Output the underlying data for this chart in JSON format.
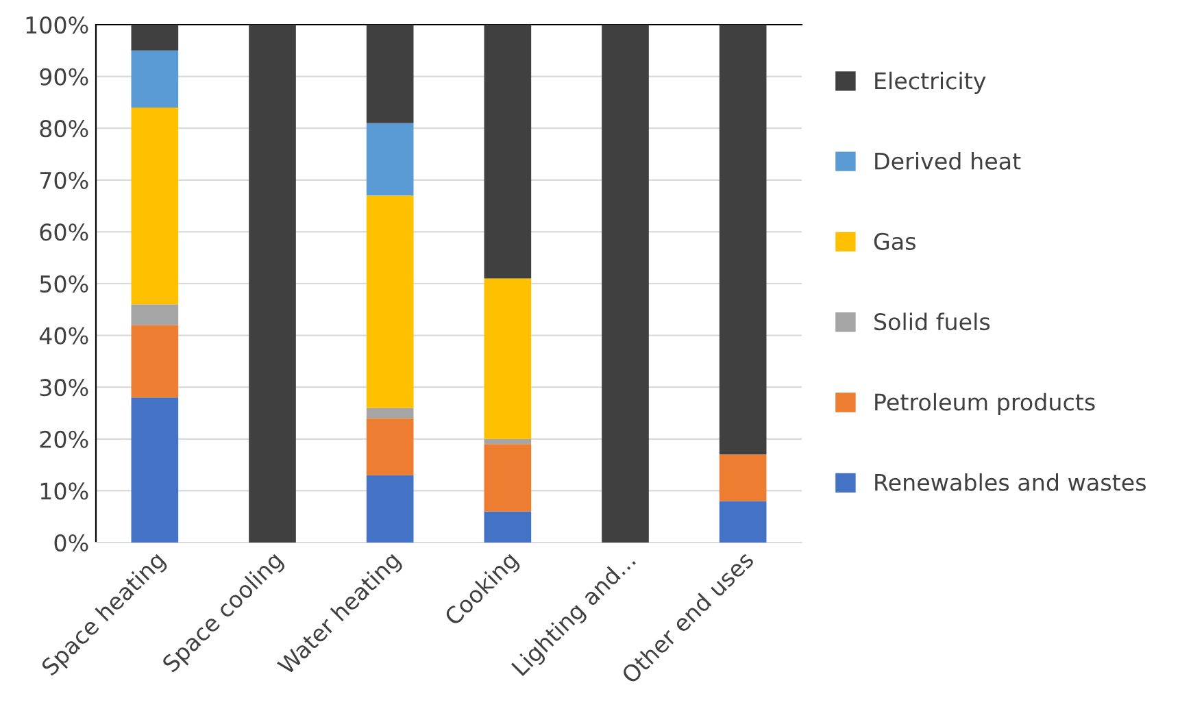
{
  "chart_data": {
    "type": "bar",
    "stacked": true,
    "categories": [
      "Space heating",
      "Space cooling",
      "Water heating",
      "Cooking",
      "Lighting and...",
      "Other end uses"
    ],
    "series": [
      {
        "name": "Renewables and wastes",
        "color": "#4472c4",
        "values": [
          28,
          0,
          13,
          6,
          0,
          8
        ]
      },
      {
        "name": "Petroleum products",
        "color": "#ed7d31",
        "values": [
          14,
          0,
          11,
          13,
          0,
          9
        ]
      },
      {
        "name": "Solid fuels",
        "color": "#a5a5a5",
        "values": [
          4,
          0,
          2,
          1,
          0,
          0
        ]
      },
      {
        "name": "Gas",
        "color": "#ffc000",
        "values": [
          38,
          0,
          41,
          31,
          0,
          0
        ]
      },
      {
        "name": "Derived heat",
        "color": "#5b9bd5",
        "values": [
          11,
          0,
          14,
          0,
          0,
          0
        ]
      },
      {
        "name": "Electricity",
        "color": "#404040",
        "values": [
          5,
          100,
          19,
          49,
          100,
          83
        ]
      }
    ],
    "ylim": [
      0,
      100
    ],
    "yticks": [
      {
        "value": 0,
        "label": "0%"
      },
      {
        "value": 10,
        "label": "10%"
      },
      {
        "value": 20,
        "label": "20%"
      },
      {
        "value": 30,
        "label": "30%"
      },
      {
        "value": 40,
        "label": "40%"
      },
      {
        "value": 50,
        "label": "50%"
      },
      {
        "value": 60,
        "label": "60%"
      },
      {
        "value": 70,
        "label": "70%"
      },
      {
        "value": 80,
        "label": "80%"
      },
      {
        "value": 90,
        "label": "90%"
      },
      {
        "value": 100,
        "label": "100%"
      }
    ],
    "grid": "y",
    "legend": "right"
  }
}
